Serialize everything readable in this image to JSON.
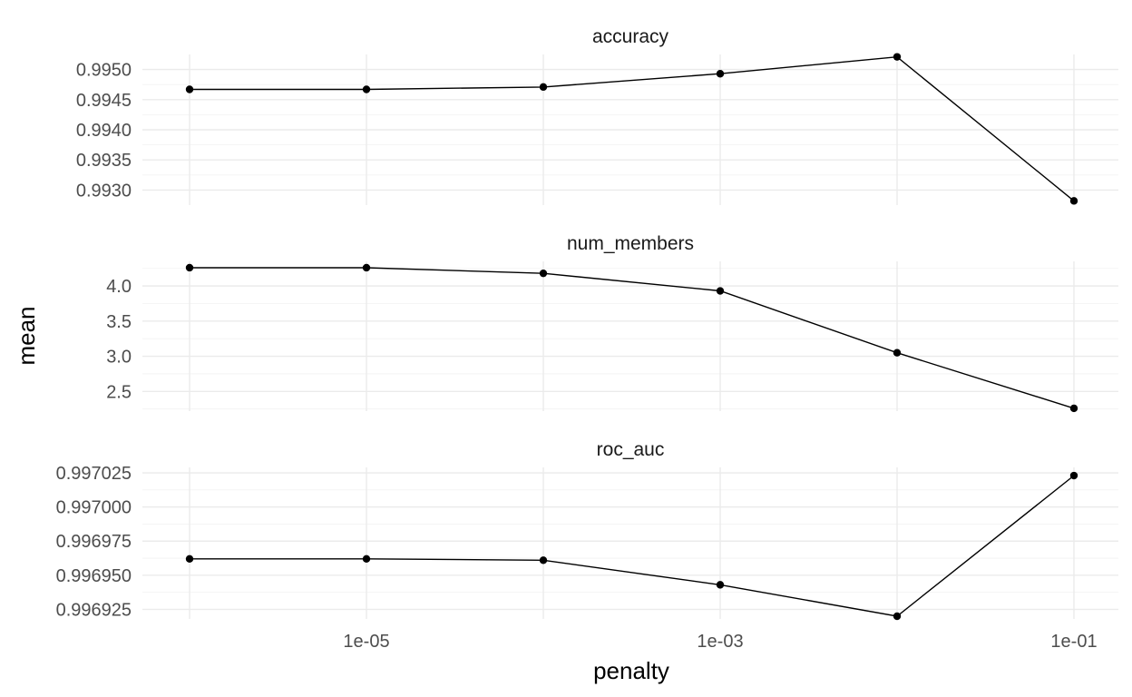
{
  "chart_data": {
    "type": "line",
    "layout": "facet_wrap, 3 rows, free y scales",
    "xlabel": "penalty",
    "ylabel": "mean",
    "x_scale": "log10",
    "x_ticks": [
      {
        "value": 1e-05,
        "label": "1e-05"
      },
      {
        "value": 0.001,
        "label": "1e-03"
      },
      {
        "value": 0.1,
        "label": "1e-01"
      }
    ],
    "x": [
      1e-06,
      1e-05,
      0.0001,
      0.001,
      0.01,
      0.1
    ],
    "grid": true,
    "panels": [
      {
        "strip": "accuracy",
        "ylim": [
          0.99275,
          0.99525
        ],
        "y_ticks": [
          {
            "value": 0.993,
            "label": "0.9930"
          },
          {
            "value": 0.9935,
            "label": "0.9935"
          },
          {
            "value": 0.994,
            "label": "0.9940"
          },
          {
            "value": 0.9945,
            "label": "0.9945"
          },
          {
            "value": 0.995,
            "label": "0.9950"
          }
        ],
        "values": [
          0.99467,
          0.99467,
          0.99471,
          0.99493,
          0.99521,
          0.99282
        ]
      },
      {
        "strip": "num_members",
        "ylim": [
          2.22,
          4.35
        ],
        "y_ticks": [
          {
            "value": 2.5,
            "label": "2.5"
          },
          {
            "value": 3.0,
            "label": "3.0"
          },
          {
            "value": 3.5,
            "label": "3.5"
          },
          {
            "value": 4.0,
            "label": "4.0"
          }
        ],
        "values": [
          4.26,
          4.26,
          4.18,
          3.93,
          3.05,
          2.26
        ]
      },
      {
        "strip": "roc_auc",
        "ylim": [
          0.996918,
          0.997029
        ],
        "y_ticks": [
          {
            "value": 0.996925,
            "label": "0.996925"
          },
          {
            "value": 0.99695,
            "label": "0.996950"
          },
          {
            "value": 0.996975,
            "label": "0.996975"
          },
          {
            "value": 0.997,
            "label": "0.997000"
          },
          {
            "value": 0.997025,
            "label": "0.997025"
          }
        ],
        "values": [
          0.996962,
          0.996962,
          0.996961,
          0.996943,
          0.99692,
          0.997023
        ]
      }
    ]
  }
}
